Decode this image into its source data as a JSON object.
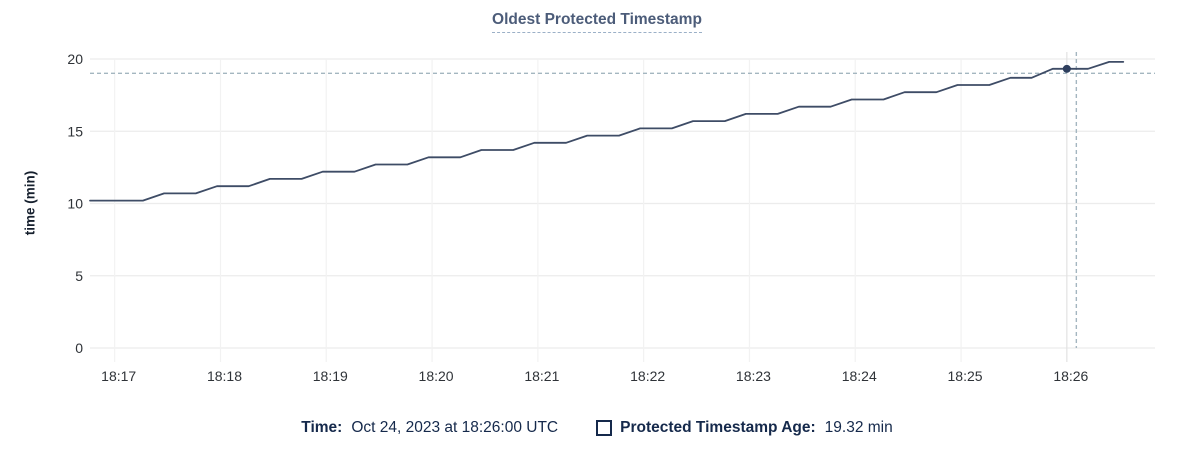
{
  "chart": {
    "title": "Oldest Protected Timestamp",
    "ylabel": "time (min)"
  },
  "legend": {
    "time_label": "Time:",
    "time_value": "Oct 24, 2023 at 18:26:00 UTC",
    "series_label": "Protected Timestamp Age:",
    "series_value": "19.32 min"
  },
  "chart_data": {
    "type": "line",
    "title": "Oldest Protected Timestamp",
    "xlabel": "",
    "ylabel": "time (min)",
    "ylim": [
      0,
      20
    ],
    "y_ticks": [
      0,
      5,
      10,
      15,
      20
    ],
    "grid": true,
    "legend_position": "bottom",
    "x_domain_seconds_after_18_16": [
      46,
      650
    ],
    "x_ticks": [
      {
        "label": "18:17",
        "t": 60
      },
      {
        "label": "18:18",
        "t": 120
      },
      {
        "label": "18:19",
        "t": 180
      },
      {
        "label": "18:20",
        "t": 240
      },
      {
        "label": "18:21",
        "t": 300
      },
      {
        "label": "18:22",
        "t": 360
      },
      {
        "label": "18:23",
        "t": 420
      },
      {
        "label": "18:24",
        "t": 480
      },
      {
        "label": "18:25",
        "t": 540
      },
      {
        "label": "18:26",
        "t": 600
      }
    ],
    "series": [
      {
        "name": "Protected Timestamp Age",
        "color": "#3e4c66",
        "points": [
          [
            46,
            10.2
          ],
          [
            76,
            10.2
          ],
          [
            88,
            10.7
          ],
          [
            106,
            10.7
          ],
          [
            118,
            11.2
          ],
          [
            136,
            11.2
          ],
          [
            148,
            11.7
          ],
          [
            166,
            11.7
          ],
          [
            178,
            12.2
          ],
          [
            196,
            12.2
          ],
          [
            208,
            12.7
          ],
          [
            226,
            12.7
          ],
          [
            238,
            13.2
          ],
          [
            256,
            13.2
          ],
          [
            268,
            13.7
          ],
          [
            286,
            13.7
          ],
          [
            298,
            14.2
          ],
          [
            316,
            14.2
          ],
          [
            328,
            14.7
          ],
          [
            346,
            14.7
          ],
          [
            358,
            15.2
          ],
          [
            376,
            15.2
          ],
          [
            388,
            15.7
          ],
          [
            406,
            15.7
          ],
          [
            418,
            16.2
          ],
          [
            436,
            16.2
          ],
          [
            448,
            16.7
          ],
          [
            466,
            16.7
          ],
          [
            478,
            17.2
          ],
          [
            496,
            17.2
          ],
          [
            508,
            17.7
          ],
          [
            526,
            17.7
          ],
          [
            538,
            18.2
          ],
          [
            556,
            18.2
          ],
          [
            568,
            18.7
          ],
          [
            580,
            18.7
          ],
          [
            592,
            19.32
          ],
          [
            612,
            19.32
          ],
          [
            624,
            19.8
          ],
          [
            632,
            19.8
          ]
        ]
      }
    ],
    "hover": {
      "t": 600,
      "value": 19.32,
      "x_label": "18:26",
      "time_text": "Oct 24, 2023 at 18:26:00 UTC",
      "value_text": "19.32 min"
    },
    "colors": {
      "grid": "#ececec",
      "grid_vertical": "#f2f2f2",
      "grid_highlight": "#e2e2e2",
      "crosshair": "#a4b6c0",
      "dot": "#2e3f5e",
      "tick_text": "#2f3338",
      "title": "#4c5c79",
      "legend_text": "#15294b"
    }
  }
}
